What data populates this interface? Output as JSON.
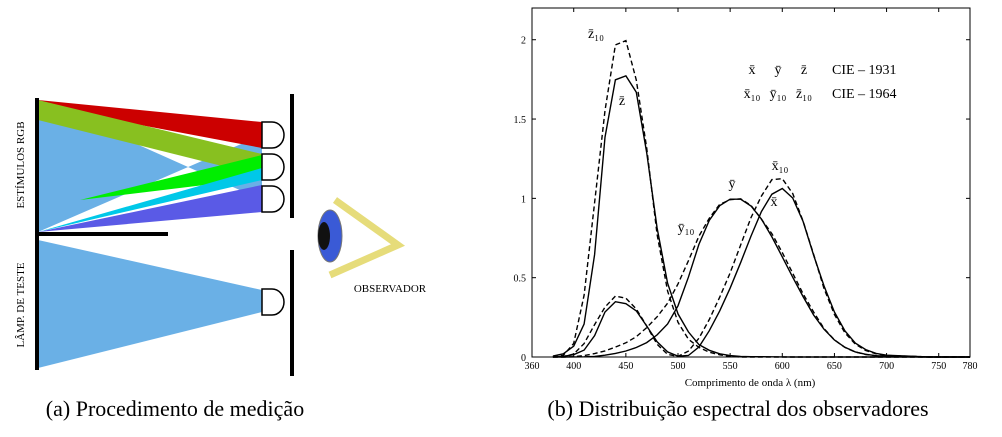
{
  "figure": {
    "diagram": {
      "stimuli_label": "ESTÍMULOS RGB",
      "test_lamp_label": "LÂMP. DE TESTE",
      "observer_label": "OBSERVADOR",
      "caption": "(a) Procedimento de medição"
    },
    "caption": "(b) Distribuição espectral dos observadores"
  },
  "chart_data": {
    "type": "line",
    "x_label": "Comprimento de onda λ (nm)",
    "xlim": [
      360,
      780
    ],
    "xticks": [
      360,
      400,
      450,
      500,
      550,
      600,
      650,
      700,
      750,
      780
    ],
    "ylim": [
      0,
      2.2
    ],
    "yticks": [
      0,
      0.5,
      1,
      1.5,
      2
    ],
    "x": [
      380,
      390,
      400,
      410,
      420,
      430,
      440,
      450,
      460,
      470,
      480,
      490,
      500,
      510,
      520,
      530,
      540,
      550,
      560,
      570,
      580,
      590,
      600,
      610,
      620,
      630,
      640,
      650,
      660,
      670,
      680,
      690,
      700,
      740,
      780
    ],
    "legend_labels": [
      "CIE – 1931",
      "CIE – 1964"
    ],
    "series": [
      {
        "name": "x̄",
        "color": "#000000",
        "style": "solid",
        "values": [
          0.0014,
          0.0042,
          0.0143,
          0.0435,
          0.1344,
          0.2839,
          0.3483,
          0.3362,
          0.2908,
          0.1954,
          0.0956,
          0.032,
          0.0049,
          0.0093,
          0.0633,
          0.1655,
          0.2904,
          0.4334,
          0.5945,
          0.7621,
          0.9163,
          1.0263,
          1.0622,
          1.0026,
          0.8544,
          0.6424,
          0.4479,
          0.2835,
          0.1649,
          0.0874,
          0.0468,
          0.0227,
          0.0114,
          0.0007,
          0
        ]
      },
      {
        "name": "ȳ",
        "color": "#000000",
        "style": "solid",
        "values": [
          0,
          0.0001,
          0.0004,
          0.0012,
          0.004,
          0.0116,
          0.023,
          0.038,
          0.06,
          0.091,
          0.139,
          0.208,
          0.323,
          0.503,
          0.71,
          0.862,
          0.954,
          0.995,
          0.995,
          0.952,
          0.87,
          0.757,
          0.631,
          0.503,
          0.381,
          0.265,
          0.175,
          0.107,
          0.061,
          0.032,
          0.017,
          0.0082,
          0.0041,
          0.0003,
          0
        ]
      },
      {
        "name": "z̄",
        "color": "#000000",
        "style": "solid",
        "values": [
          0.0065,
          0.0201,
          0.0679,
          0.2074,
          0.6456,
          1.3856,
          1.7471,
          1.7721,
          1.6692,
          1.2876,
          0.813,
          0.4652,
          0.272,
          0.1582,
          0.0782,
          0.0422,
          0.0203,
          0.0087,
          0.0039,
          0.0021,
          0.0017,
          0.0011,
          0.0008,
          0.0003,
          0.0002,
          0,
          0,
          0,
          0,
          0,
          0,
          0,
          0,
          0,
          0
        ]
      },
      {
        "name": "x̄₁₀",
        "color": "#000000",
        "style": "dashed",
        "values": [
          0.0002,
          0.0024,
          0.0191,
          0.0847,
          0.2045,
          0.3147,
          0.3837,
          0.3707,
          0.3023,
          0.1956,
          0.0805,
          0.0162,
          0.0038,
          0.0375,
          0.1177,
          0.2365,
          0.3768,
          0.5298,
          0.7052,
          0.8787,
          1.0142,
          1.1185,
          1.124,
          1.0305,
          0.8563,
          0.6475,
          0.4316,
          0.2683,
          0.1526,
          0.0813,
          0.0409,
          0.0199,
          0.0096,
          0.0005,
          0
        ]
      },
      {
        "name": "ȳ₁₀",
        "color": "#000000",
        "style": "dashed",
        "values": [
          0,
          0.0003,
          0.002,
          0.0088,
          0.0214,
          0.0387,
          0.0621,
          0.0895,
          0.1282,
          0.1852,
          0.2536,
          0.3391,
          0.4608,
          0.6067,
          0.7618,
          0.8752,
          0.962,
          0.9918,
          0.9973,
          0.9556,
          0.8689,
          0.7774,
          0.6583,
          0.528,
          0.3981,
          0.2835,
          0.1798,
          0.1076,
          0.0603,
          0.0318,
          0.0159,
          0.0077,
          0.0037,
          0.0002,
          0
        ]
      },
      {
        "name": "z̄₁₀",
        "color": "#000000",
        "style": "dashed",
        "values": [
          0.0007,
          0.0105,
          0.086,
          0.3894,
          0.9725,
          1.5535,
          1.9673,
          1.9948,
          1.7454,
          1.3176,
          0.7721,
          0.4153,
          0.2185,
          0.112,
          0.0607,
          0.0305,
          0.0137,
          0.004,
          0,
          0,
          0,
          0,
          0,
          0,
          0,
          0,
          0,
          0,
          0,
          0,
          0,
          0,
          0,
          0,
          0
        ]
      }
    ]
  }
}
